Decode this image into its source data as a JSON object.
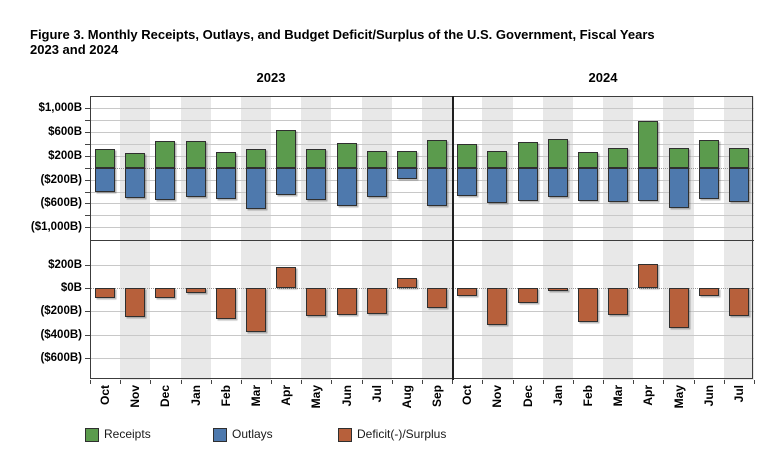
{
  "figure": {
    "title_line1": "Figure 3. Monthly Receipts, Outlays, and Budget Deficit/Surplus of the U.S. Government, Fiscal Years",
    "title_line2": "2023 and 2024"
  },
  "chart_data": {
    "type": "bar",
    "layout": "two stacked panels sharing one category axis; top panel shows Receipts (up) and Outlays (down from zero), bottom panel shows Deficit(-)/Surplus",
    "categories": [
      "Oct",
      "Nov",
      "Dec",
      "Jan",
      "Feb",
      "Mar",
      "Apr",
      "May",
      "Jun",
      "Jul",
      "Aug",
      "Sep",
      "Oct",
      "Nov",
      "Dec",
      "Jan",
      "Feb",
      "Mar",
      "Apr",
      "May",
      "Jun",
      "Jul"
    ],
    "groups": [
      {
        "label": "2023",
        "start": 0,
        "count": 12
      },
      {
        "label": "2024",
        "start": 12,
        "count": 10
      }
    ],
    "series": [
      {
        "name": "Receipts",
        "panel": "top",
        "direction": "up",
        "color": "#5b9b4d",
        "values": [
          319,
          252,
          455,
          447,
          262,
          313,
          639,
          307,
          418,
          276,
          283,
          468,
          403,
          275,
          429,
          477,
          271,
          332,
          776,
          324,
          466,
          330
        ]
      },
      {
        "name": "Outlays",
        "panel": "top",
        "direction": "down",
        "color": "#4e79ad",
        "values": [
          406,
          501,
          540,
          486,
          525,
          691,
          463,
          548,
          646,
          497,
          194,
          639,
          470,
          589,
          559,
          499,
          567,
          568,
          567,
          671,
          532,
          574
        ]
      },
      {
        "name": "Deficit(-)/Surplus",
        "panel": "bottom",
        "direction": "signed",
        "color": "#b7603b",
        "values": [
          -88,
          -249,
          -85,
          -39,
          -262,
          -378,
          176,
          -240,
          -228,
          -221,
          89,
          -171,
          -67,
          -314,
          -129,
          -22,
          -296,
          -236,
          210,
          -347,
          -66,
          -244
        ]
      }
    ],
    "top_axis": {
      "tick_labels": [
        "$1,000B",
        "$600B",
        "$200B",
        "($200B)",
        "($600B)",
        "($1,000B)"
      ],
      "tick_values": [
        1000,
        600,
        200,
        -200,
        -600,
        -1000
      ],
      "grid_step": 200,
      "ylim": [
        -1200,
        1200
      ],
      "zero_line": "dotted"
    },
    "bottom_axis": {
      "tick_labels": [
        "$200B",
        "$0B",
        "($200B)",
        "($400B)",
        "($600B)"
      ],
      "tick_values": [
        200,
        0,
        -200,
        -400,
        -600
      ],
      "grid_step": 200,
      "ylim": [
        -790,
        420
      ],
      "zero_line": "dotted"
    }
  },
  "legend": {
    "items": [
      {
        "label": "Receipts",
        "color": "#5b9b4d"
      },
      {
        "label": "Outlays",
        "color": "#4e79ad"
      },
      {
        "label": "Deficit(-)/Surplus",
        "color": "#b7603b"
      }
    ]
  },
  "colors": {
    "bar_border": "#2f2f2f",
    "stripe": "#e8e8e8",
    "gridline": "#c8c8c8",
    "zero_line": "#9a9a9a",
    "frame": "#3c3c3c",
    "divider": "#1f1f1f",
    "tick": "#444444",
    "text": "#000000"
  }
}
